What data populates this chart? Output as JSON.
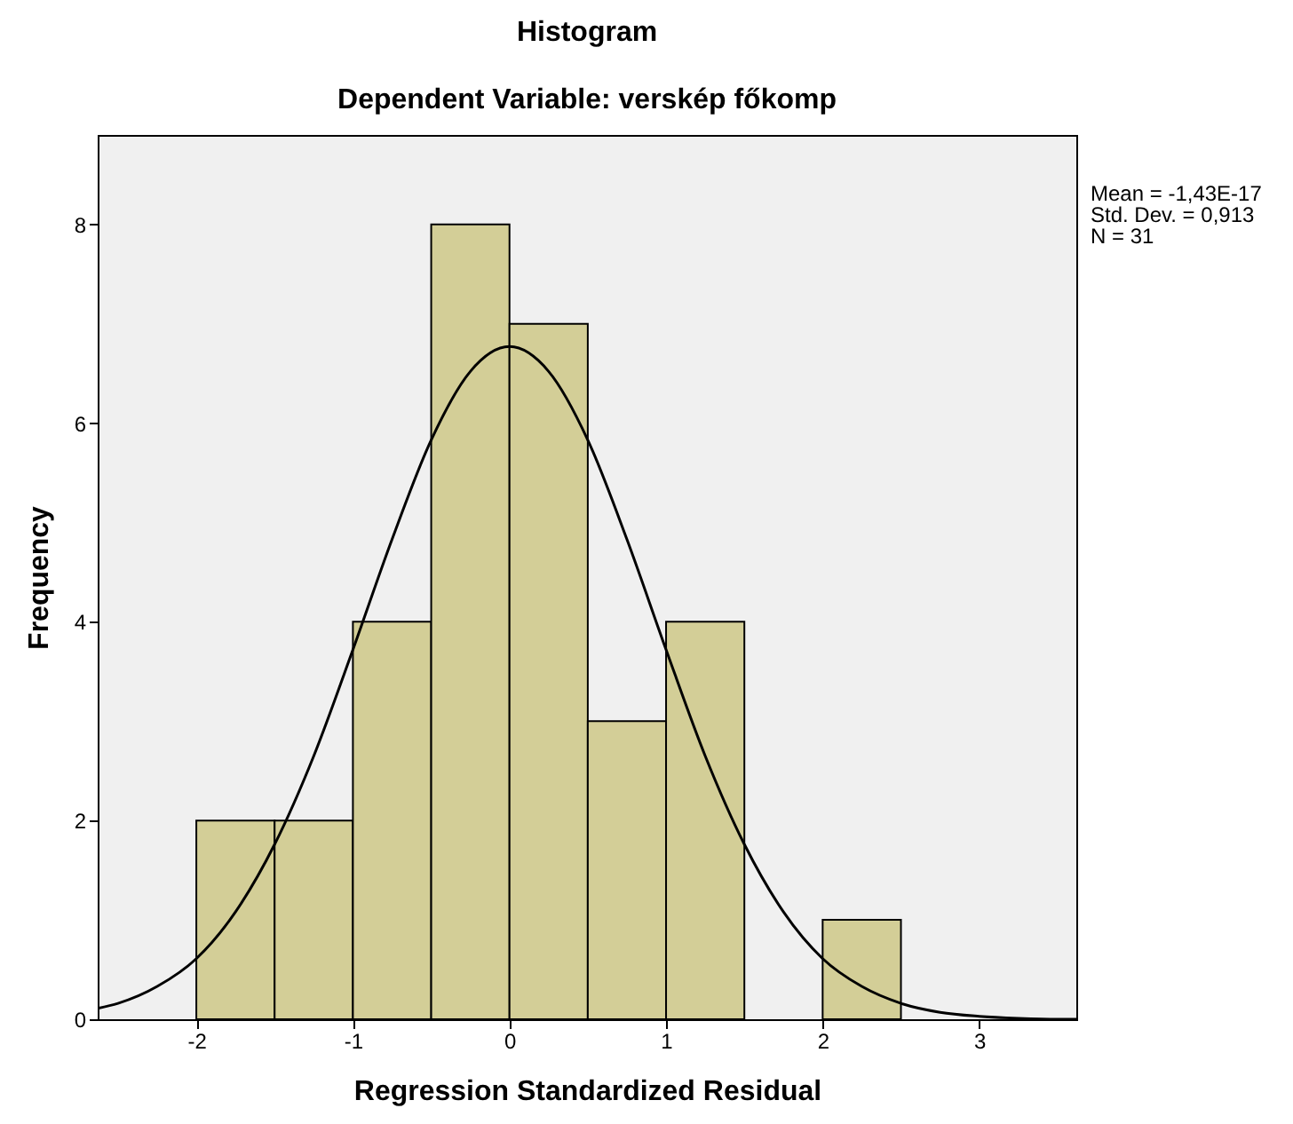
{
  "chart_data": {
    "type": "histogram",
    "title": "Histogram",
    "subtitle": "Dependent Variable: verskép főkomp",
    "xlabel": "Regression Standardized Residual",
    "ylabel": "Frequency",
    "bins": [
      -2,
      -1.5,
      -1,
      -0.5,
      0,
      0.5,
      1,
      1.5,
      2,
      2.5
    ],
    "series": [
      {
        "color": "#d3ce97",
        "values": [
          2,
          2,
          4,
          8,
          7,
          3,
          4,
          0,
          1
        ]
      },
      {
        "type": "line",
        "color": "#000000",
        "x": [
          -2.63,
          -2.5,
          -2.25,
          -2,
          -1.75,
          -1.5,
          -1.25,
          -1,
          -0.75,
          -0.5,
          -0.25,
          0,
          0.25,
          0.5,
          0.75,
          1,
          1.25,
          1.5,
          1.75,
          2,
          2.25,
          2.5,
          2.75,
          3,
          3.25,
          3.5,
          3.62
        ],
        "values": [
          0.11,
          0.16,
          0.33,
          0.61,
          1.08,
          1.76,
          2.65,
          3.72,
          4.83,
          5.83,
          6.52,
          6.77,
          6.52,
          5.83,
          4.83,
          3.72,
          2.65,
          1.76,
          1.08,
          0.61,
          0.33,
          0.16,
          0.07,
          0.03,
          0.01,
          0.0,
          0.0
        ]
      }
    ],
    "xlim": [
      -2.63,
      3.62
    ],
    "ylim": [
      0,
      8.9
    ],
    "xticks": [
      -2,
      -1,
      0,
      1,
      2,
      3
    ],
    "yticks": [
      0,
      2,
      4,
      6,
      8
    ],
    "annotations": [
      "Mean = -1,43E-17",
      "Std. Dev. = 0,913",
      "N = 31"
    ]
  }
}
